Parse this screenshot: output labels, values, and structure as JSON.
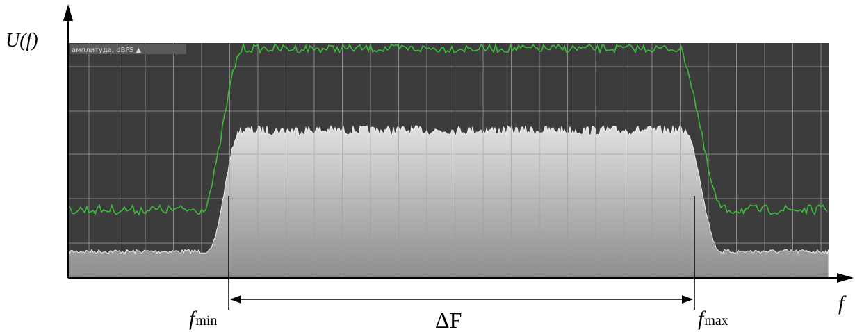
{
  "labels": {
    "y_axis": "U(f)",
    "x_axis": "f",
    "f_min_symbol": "f",
    "f_min_sub": "min",
    "f_max_symbol": "f",
    "f_max_sub": "max",
    "bandwidth": "ΔF"
  },
  "screenshot_panel": {
    "caption": "амплитуда, dBFS ▲"
  },
  "colors": {
    "panel_background": "#3c3c3c",
    "grid": "#8a8a8a",
    "green_trace": "#3dbb3d",
    "spectrum_fill_top": "#d8d8d8",
    "spectrum_fill_bottom": "#8f8f8f",
    "axes": "#000000"
  }
}
